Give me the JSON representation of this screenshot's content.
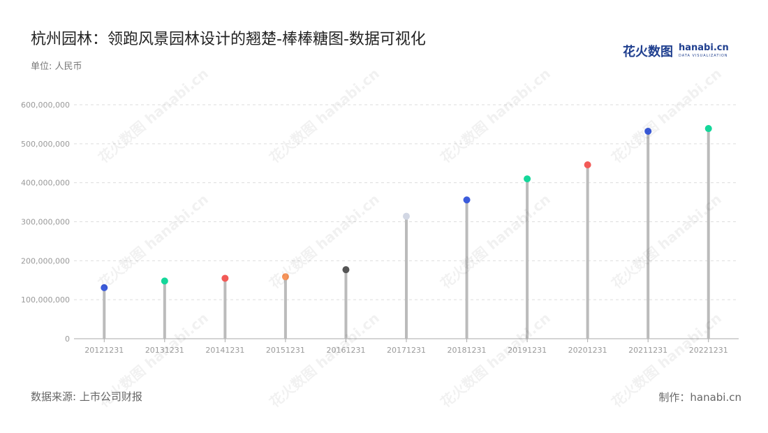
{
  "header": {
    "title": "杭州园林：领跑风景园林设计的翘楚-棒棒糖图-数据可视化",
    "unit": "单位: 人民币"
  },
  "brand": {
    "cn": "花火数图",
    "en": "hanabi.cn",
    "sub": "DATA VISUALIZATION"
  },
  "footer": {
    "source": "数据来源: 上市公司财报",
    "maker": "制作：hanabi.cn"
  },
  "chart_data": {
    "type": "lollipop",
    "categories": [
      "20121231",
      "20131231",
      "20141231",
      "20151231",
      "20161231",
      "20171231",
      "20181231",
      "20191231",
      "20201231",
      "20211231",
      "20221231"
    ],
    "values": [
      131000000,
      148000000,
      155000000,
      159000000,
      177000000,
      314000000,
      356000000,
      410000000,
      446000000,
      532000000,
      539000000
    ],
    "dot_colors": [
      "#3b5bdb",
      "#14d79a",
      "#f25a57",
      "#f7945a",
      "#555555",
      "#d2d7e4",
      "#3b5bdb",
      "#14d79a",
      "#f25a57",
      "#3b5bdb",
      "#14d79a"
    ],
    "stem_color": "#bbbbbb",
    "ylim": [
      0,
      600000000
    ],
    "yticks": [
      0,
      100000000,
      200000000,
      300000000,
      400000000,
      500000000,
      600000000
    ],
    "ytick_labels": [
      "0",
      "100,000,000",
      "200,000,000",
      "300,000,000",
      "400,000,000",
      "500,000,000",
      "600,000,000"
    ],
    "grid": true,
    "xlabel": "",
    "ylabel": ""
  }
}
